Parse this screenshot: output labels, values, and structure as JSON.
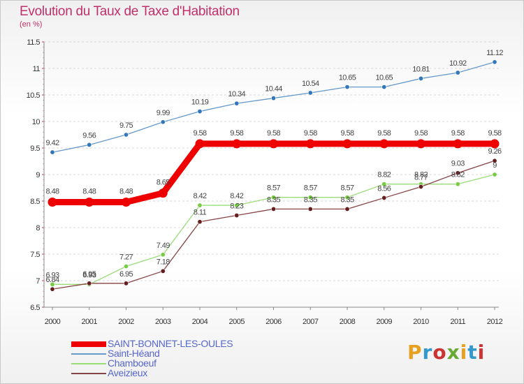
{
  "header": {
    "title": "Evolution du Taux de Taxe d'Habitation",
    "subtitle": "(en %)"
  },
  "logo": {
    "text": "Proxiti",
    "colors": [
      "#e8a020",
      "#3399cc",
      "#cc3333",
      "#66aa33",
      "#e8a020",
      "#3399cc",
      "#cc3333"
    ]
  },
  "chart_data": {
    "type": "line",
    "x": [
      "2000",
      "2001",
      "2002",
      "2003",
      "2004",
      "2005",
      "2006",
      "2007",
      "2008",
      "2009",
      "2010",
      "2011",
      "2012"
    ],
    "ylim": [
      6.5,
      11.5
    ],
    "yticks": [
      "6.5",
      "7",
      "7.5",
      "8",
      "8.5",
      "9",
      "9.5",
      "10",
      "10.5",
      "11",
      "11.5"
    ],
    "grid": "horizontal-dashed",
    "legend_position": "bottom-left",
    "series": [
      {
        "name": "SAINT-BONNET-LES-OULES",
        "color": "#ee0000",
        "marker": "#ee0000",
        "values": [
          8.48,
          8.48,
          8.48,
          8.65,
          9.58,
          9.58,
          9.58,
          9.58,
          9.58,
          9.58,
          9.58,
          9.58,
          9.58
        ],
        "labels": [
          "8.48",
          "8.48",
          "8.48",
          "8.65",
          "9.58",
          "9.58",
          "9.58",
          "9.58",
          "9.58",
          "9.58",
          "9.58",
          "9.58",
          "9.58"
        ]
      },
      {
        "name": "Saint-Héand",
        "color": "#6699cc",
        "marker": "#3377bb",
        "values": [
          9.42,
          9.56,
          9.75,
          9.99,
          10.19,
          10.34,
          10.44,
          10.54,
          10.65,
          10.65,
          10.81,
          10.92,
          11.12
        ],
        "labels": [
          "9.42",
          "9.56",
          "9.75",
          "9.99",
          "10.19",
          "10.34",
          "10.44",
          "10.54",
          "10.65",
          "10.65",
          "10.81",
          "10.92",
          "11.12"
        ]
      },
      {
        "name": "Chamboeuf",
        "color": "#99dd77",
        "marker": "#77cc44",
        "values": [
          6.93,
          6.93,
          7.27,
          7.49,
          8.42,
          8.42,
          8.57,
          8.57,
          8.57,
          8.82,
          8.82,
          8.82,
          9
        ],
        "labels": [
          "6.93",
          "6.93",
          "7.27",
          "7.49",
          "8.42",
          "8.42",
          "8.57",
          "8.57",
          "8.57",
          "8.82",
          "8.82",
          "8.82",
          "9"
        ]
      },
      {
        "name": "Aveizieux",
        "color": "#884444",
        "marker": "#661f1f",
        "values": [
          6.84,
          6.95,
          6.95,
          7.18,
          8.11,
          8.23,
          8.35,
          8.35,
          8.35,
          8.56,
          8.77,
          9.03,
          9.26
        ],
        "labels": [
          "6.84",
          "6.95",
          "6.95",
          "7.18",
          "8.11",
          "8.23",
          "8.35",
          "8.35",
          "8.35",
          "8.56",
          "8.77",
          "9.03",
          "9.26"
        ]
      }
    ]
  }
}
